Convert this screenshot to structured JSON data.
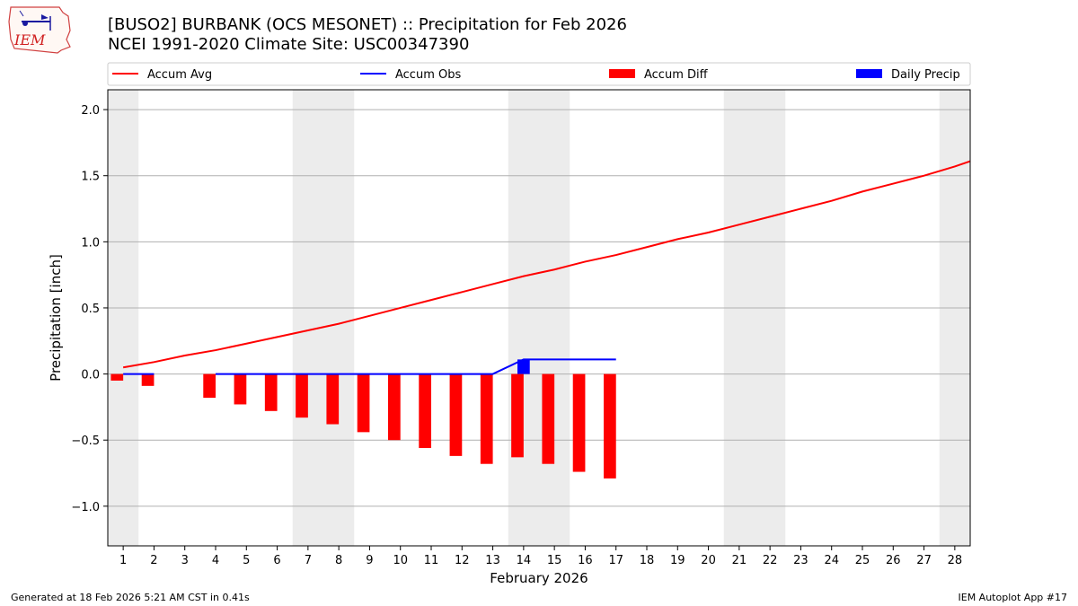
{
  "header": {
    "title_line1": "[BUSO2] BURBANK (OCS MESONET) :: Precipitation for Feb 2026",
    "title_line2": "NCEI 1991-2020 Climate Site: USC00347390",
    "logo_text": "IEM"
  },
  "footer": {
    "generated": "Generated at 18 Feb 2026 5:21 AM CST in 0.41s",
    "app": "IEM Autoplot App #17"
  },
  "chart_data": {
    "type": "bar",
    "title": "[BUSO2] BURBANK (OCS MESONET) :: Precipitation for Feb 2026",
    "subtitle": "NCEI 1991-2020 Climate Site: USC00347390",
    "xlabel": "February 2026",
    "ylabel": "Precipitation [inch]",
    "xlim": [
      0.5,
      28.5
    ],
    "ylim": [
      -1.3,
      2.15
    ],
    "yticks": [
      -1.0,
      -0.5,
      0.0,
      0.5,
      1.0,
      1.5,
      2.0
    ],
    "ytick_labels": [
      "−1.0",
      "−0.5",
      "0.0",
      "0.5",
      "1.0",
      "1.5",
      "2.0"
    ],
    "xticks": [
      1,
      2,
      3,
      4,
      5,
      6,
      7,
      8,
      9,
      10,
      11,
      12,
      13,
      14,
      15,
      16,
      17,
      18,
      19,
      20,
      21,
      22,
      23,
      24,
      25,
      26,
      27,
      28
    ],
    "grid": "horizontal",
    "legend_position": "top",
    "weekend_shading": [
      [
        0.5,
        1.5
      ],
      [
        6.5,
        8.5
      ],
      [
        13.5,
        15.5
      ],
      [
        20.5,
        22.5
      ],
      [
        27.5,
        28.5
      ]
    ],
    "series": [
      {
        "name": "Accum Avg",
        "kind": "line",
        "color": "#ff0000",
        "x": [
          1,
          2,
          3,
          4,
          5,
          6,
          7,
          8,
          9,
          10,
          11,
          12,
          13,
          14,
          15,
          16,
          17,
          18,
          19,
          20,
          21,
          22,
          23,
          24,
          25,
          26,
          27,
          28,
          28.5
        ],
        "values": [
          0.05,
          0.09,
          0.14,
          0.18,
          0.23,
          0.28,
          0.33,
          0.38,
          0.44,
          0.5,
          0.56,
          0.62,
          0.68,
          0.74,
          0.79,
          0.85,
          0.9,
          0.96,
          1.02,
          1.07,
          1.13,
          1.19,
          1.25,
          1.31,
          1.38,
          1.44,
          1.5,
          1.57,
          1.61
        ]
      },
      {
        "name": "Accum Obs",
        "kind": "line",
        "color": "#0000ff",
        "segments": [
          {
            "x": [
              1,
              2
            ],
            "values": [
              0.0,
              0.0
            ]
          },
          {
            "x": [
              4,
              5,
              6,
              7,
              8,
              9,
              10,
              11,
              12,
              13,
              14,
              15,
              16,
              17
            ],
            "values": [
              0.0,
              0.0,
              0.0,
              0.0,
              0.0,
              0.0,
              0.0,
              0.0,
              0.0,
              0.0,
              0.11,
              0.11,
              0.11,
              0.11
            ]
          }
        ]
      },
      {
        "name": "Accum Diff",
        "kind": "bar",
        "color": "#ff0000",
        "x": [
          1,
          2,
          4,
          5,
          6,
          7,
          8,
          9,
          10,
          11,
          12,
          13,
          14,
          15,
          16,
          17
        ],
        "values": [
          -0.05,
          -0.09,
          -0.18,
          -0.23,
          -0.28,
          -0.33,
          -0.38,
          -0.44,
          -0.5,
          -0.56,
          -0.62,
          -0.68,
          -0.63,
          -0.68,
          -0.74,
          -0.79
        ]
      },
      {
        "name": "Daily Precip",
        "kind": "bar",
        "color": "#0000ff",
        "x": [
          14
        ],
        "values": [
          0.11
        ]
      }
    ]
  }
}
